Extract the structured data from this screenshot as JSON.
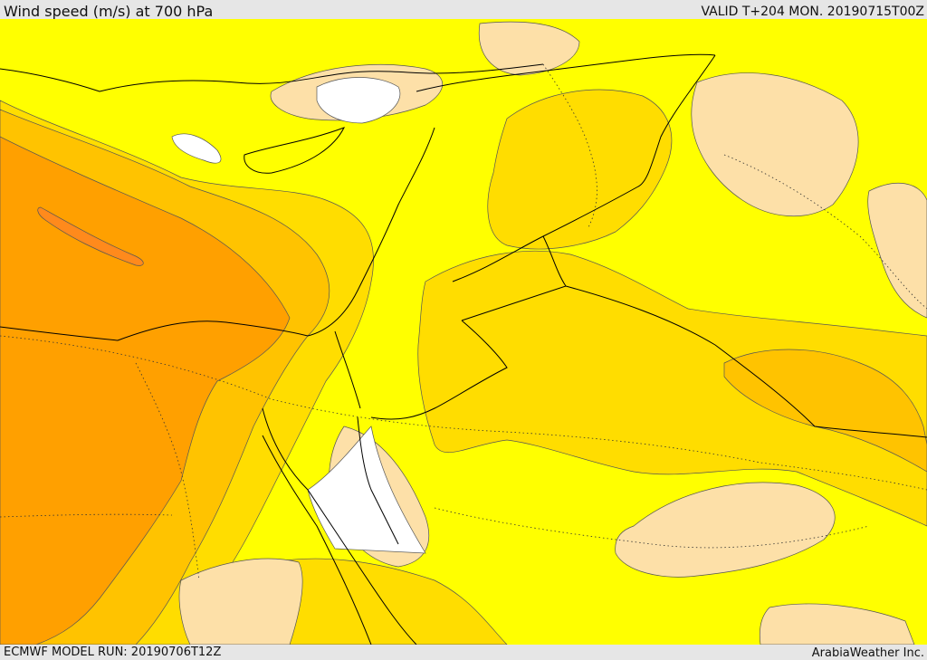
{
  "header": {
    "title": "Wind speed (m/s) at 700 hPa",
    "valid_time": "VALID T+204 MON. 20190715T00Z"
  },
  "footer": {
    "model_run": "ECMWF MODEL RUN: 20190706T12Z",
    "provider": "ArabiaWeather Inc."
  },
  "map": {
    "field": "wind_speed_700hPa",
    "colors": {
      "calm": "#ffffff",
      "light": "#fde0a8",
      "moderate": "#ffff00",
      "fresh": "#ffdd00",
      "strong": "#ffc300",
      "very_strong": "#ffa000",
      "extreme": "#ff8a1c"
    }
  }
}
